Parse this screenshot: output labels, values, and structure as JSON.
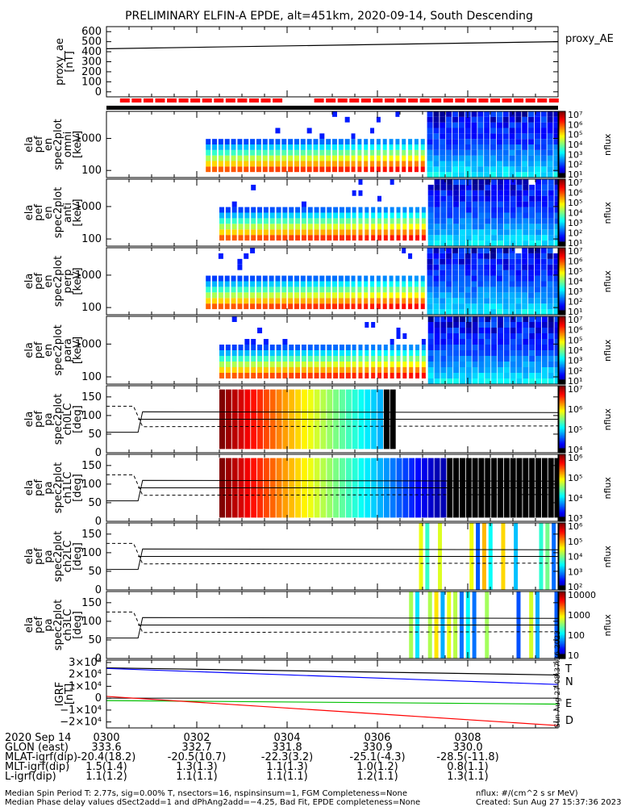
{
  "title": "PRELIMINARY ELFIN-A EPDE, alt=451km, 2020-09-14, South Descending",
  "colors": {
    "frame": "#000000",
    "red_bar": "#ff0000",
    "black_bar": "#000000",
    "T": "#000000",
    "N": "#0000ff",
    "E": "#00c000",
    "D": "#ff0000"
  },
  "side_stamp": "Sun Aug 27 08:37:36 2023",
  "chart_data": [
    {
      "type": "line",
      "panel": "proxy_ae",
      "ylabel": [
        "proxy_ae",
        "[nT]"
      ],
      "yticks": [
        "600",
        "500",
        "400",
        "300",
        "200",
        "100",
        "0"
      ],
      "ylim": [
        -50,
        650
      ],
      "legend": "proxy_AE",
      "x_minutes": [
        0,
        10
      ],
      "values": [
        430,
        500
      ]
    },
    {
      "type": "heatmap",
      "panel": "status_bar",
      "description_none": "",
      "red_segments": [
        [
          0.3,
          3.8
        ],
        [
          4.6,
          10
        ]
      ],
      "black_line": true
    },
    {
      "type": "heatmap",
      "panel": "en_omni",
      "ylabel": [
        "ela",
        "pef",
        "en",
        "spec2plot",
        "omni",
        "[keV]"
      ],
      "yticks": [
        "1000",
        "100"
      ],
      "yscale": "log",
      "ylim": [
        60,
        7000
      ],
      "cbar_ticks": [
        "10⁷",
        "10⁶",
        "10⁵",
        "10⁴",
        "10³",
        "10²",
        "10¹"
      ],
      "cbar_label": "nflux",
      "start_min": 2.2
    },
    {
      "type": "heatmap",
      "panel": "en_anti",
      "ylabel": [
        "ela",
        "pef",
        "en",
        "spec2plot",
        "anti",
        "[keV]"
      ],
      "yticks": [
        "1000",
        "100"
      ],
      "yscale": "log",
      "ylim": [
        60,
        7000
      ],
      "cbar_ticks": [
        "10⁷",
        "10⁶",
        "10⁵",
        "10⁴",
        "10³",
        "10²",
        "10¹"
      ],
      "cbar_label": "nflux",
      "start_min": 2.5
    },
    {
      "type": "heatmap",
      "panel": "en_perp",
      "ylabel": [
        "ela",
        "pef",
        "en",
        "spec2plot",
        "perp",
        "[keV]"
      ],
      "yticks": [
        "1000",
        "100"
      ],
      "yscale": "log",
      "ylim": [
        60,
        7000
      ],
      "cbar_ticks": [
        "10⁷",
        "10⁶",
        "10⁵",
        "10⁴",
        "10³",
        "10²",
        "10¹"
      ],
      "cbar_label": "nflux",
      "start_min": 2.2
    },
    {
      "type": "heatmap",
      "panel": "en_para",
      "ylabel": [
        "ela",
        "pef",
        "en",
        "spec2plot",
        "para",
        "[keV]"
      ],
      "yticks": [
        "1000",
        "100"
      ],
      "yscale": "log",
      "ylim": [
        60,
        7000
      ],
      "cbar_ticks": [
        "10⁷",
        "10⁶",
        "10⁵",
        "10⁴",
        "10³",
        "10²",
        "10¹"
      ],
      "cbar_label": "nflux",
      "start_min": 2.5
    },
    {
      "type": "heatmap",
      "panel": "pa_ch0LC",
      "ylabel": [
        "ela",
        "pef",
        "pa",
        "spec2plot",
        "ch0LC",
        "[deg]"
      ],
      "yticks": [
        "150",
        "100",
        "50",
        "0"
      ],
      "ylim": [
        0,
        180
      ],
      "cbar_ticks": [
        "10⁷",
        "10⁶",
        "10⁵",
        "10⁴"
      ],
      "cbar_label": "nflux",
      "lc_lines": [
        90,
        110,
        70
      ],
      "end_min": 6.4
    },
    {
      "type": "heatmap",
      "panel": "pa_ch1LC",
      "ylabel": [
        "ela",
        "pef",
        "pa",
        "spec2plot",
        "ch1LC",
        "[deg]"
      ],
      "yticks": [
        "150",
        "100",
        "50",
        "0"
      ],
      "ylim": [
        0,
        180
      ],
      "cbar_ticks": [
        "10⁶",
        "10⁵",
        "10⁴",
        "10³"
      ],
      "cbar_label": "nflux",
      "lc_lines": [
        90,
        110,
        70
      ],
      "end_min": 10
    },
    {
      "type": "heatmap",
      "panel": "pa_ch2LC",
      "ylabel": [
        "ela",
        "pef",
        "pa",
        "spec2plot",
        "ch2LC",
        "[deg]"
      ],
      "yticks": [
        "150",
        "100",
        "50",
        "0"
      ],
      "ylim": [
        0,
        180
      ],
      "cbar_ticks": [
        "10⁶",
        "10⁵",
        "10⁴",
        "10³",
        "10²"
      ],
      "cbar_label": "nflux",
      "lc_lines": [
        90,
        110,
        70
      ],
      "start_min": 6.5
    },
    {
      "type": "heatmap",
      "panel": "pa_ch3LC",
      "ylabel": [
        "ela",
        "pef",
        "pa",
        "spec2plot",
        "ch3LC",
        "[deg]"
      ],
      "yticks": [
        "150",
        "100",
        "50",
        "0"
      ],
      "ylim": [
        0,
        180
      ],
      "cbar_ticks": [
        "10000",
        "1000",
        "100",
        "10"
      ],
      "cbar_label": "nflux",
      "lc_lines": [
        90,
        110,
        70
      ],
      "start_min": 6.7
    },
    {
      "type": "line",
      "panel": "igrf",
      "ylabel": [
        "IGRF",
        "[nT]"
      ],
      "yticks": [
        "3×10⁴",
        "2×10⁴",
        "1×10⁴",
        "0",
        "−1×10⁴",
        "−2×10⁴"
      ],
      "ylim": [
        -25000,
        32000
      ],
      "x_minutes": [
        0,
        10
      ],
      "series": [
        {
          "name": "T",
          "values": [
            25500,
            19500
          ]
        },
        {
          "name": "N",
          "values": [
            25000,
            11500
          ]
        },
        {
          "name": "E",
          "values": [
            -2000,
            -5000
          ]
        },
        {
          "name": "D",
          "values": [
            1500,
            -23000
          ]
        }
      ]
    }
  ],
  "xaxis": {
    "rows": [
      {
        "label": "2020 Sep 14",
        "values": [
          "0300",
          "0302",
          "0304",
          "0306",
          "0308"
        ]
      },
      {
        "label": "GLON (east)",
        "values": [
          "333.6",
          "332.7",
          "331.8",
          "330.9",
          "330.0"
        ]
      },
      {
        "label": "MLAT-igrf(dip)",
        "values": [
          "-20.4(18.2)",
          "-20.5(10.7)",
          "-22.3(3.2)",
          "-25.1(-4.3)",
          "-28.5(-11.8)"
        ]
      },
      {
        "label": "MLT-igrf(dip)",
        "values": [
          "1.5(1.4)",
          "1.3(1.3)",
          "1.1(1.3)",
          "1.0(1.2)",
          "0.8(1.1)"
        ]
      },
      {
        "label": "L-igrf(dip)",
        "values": [
          "1.1(1.2)",
          "1.1(1.1)",
          "1.1(1.1)",
          "1.2(1.1)",
          "1.3(1.1)"
        ]
      }
    ]
  },
  "footer": {
    "line1": "Median Spin Period T: 2.77s, sig=0.00% T, nsectors=16, nspinsinsum=1, FGM Completeness=None",
    "line2": "Median Phase delay values dSect2add=1 and dPhAng2add=−4.25, Bad Fit, EPDE completeness=None",
    "units": "nflux: #/(cm^2 s sr MeV)",
    "created": "Created: Sun Aug 27 15:37:36 2023"
  }
}
